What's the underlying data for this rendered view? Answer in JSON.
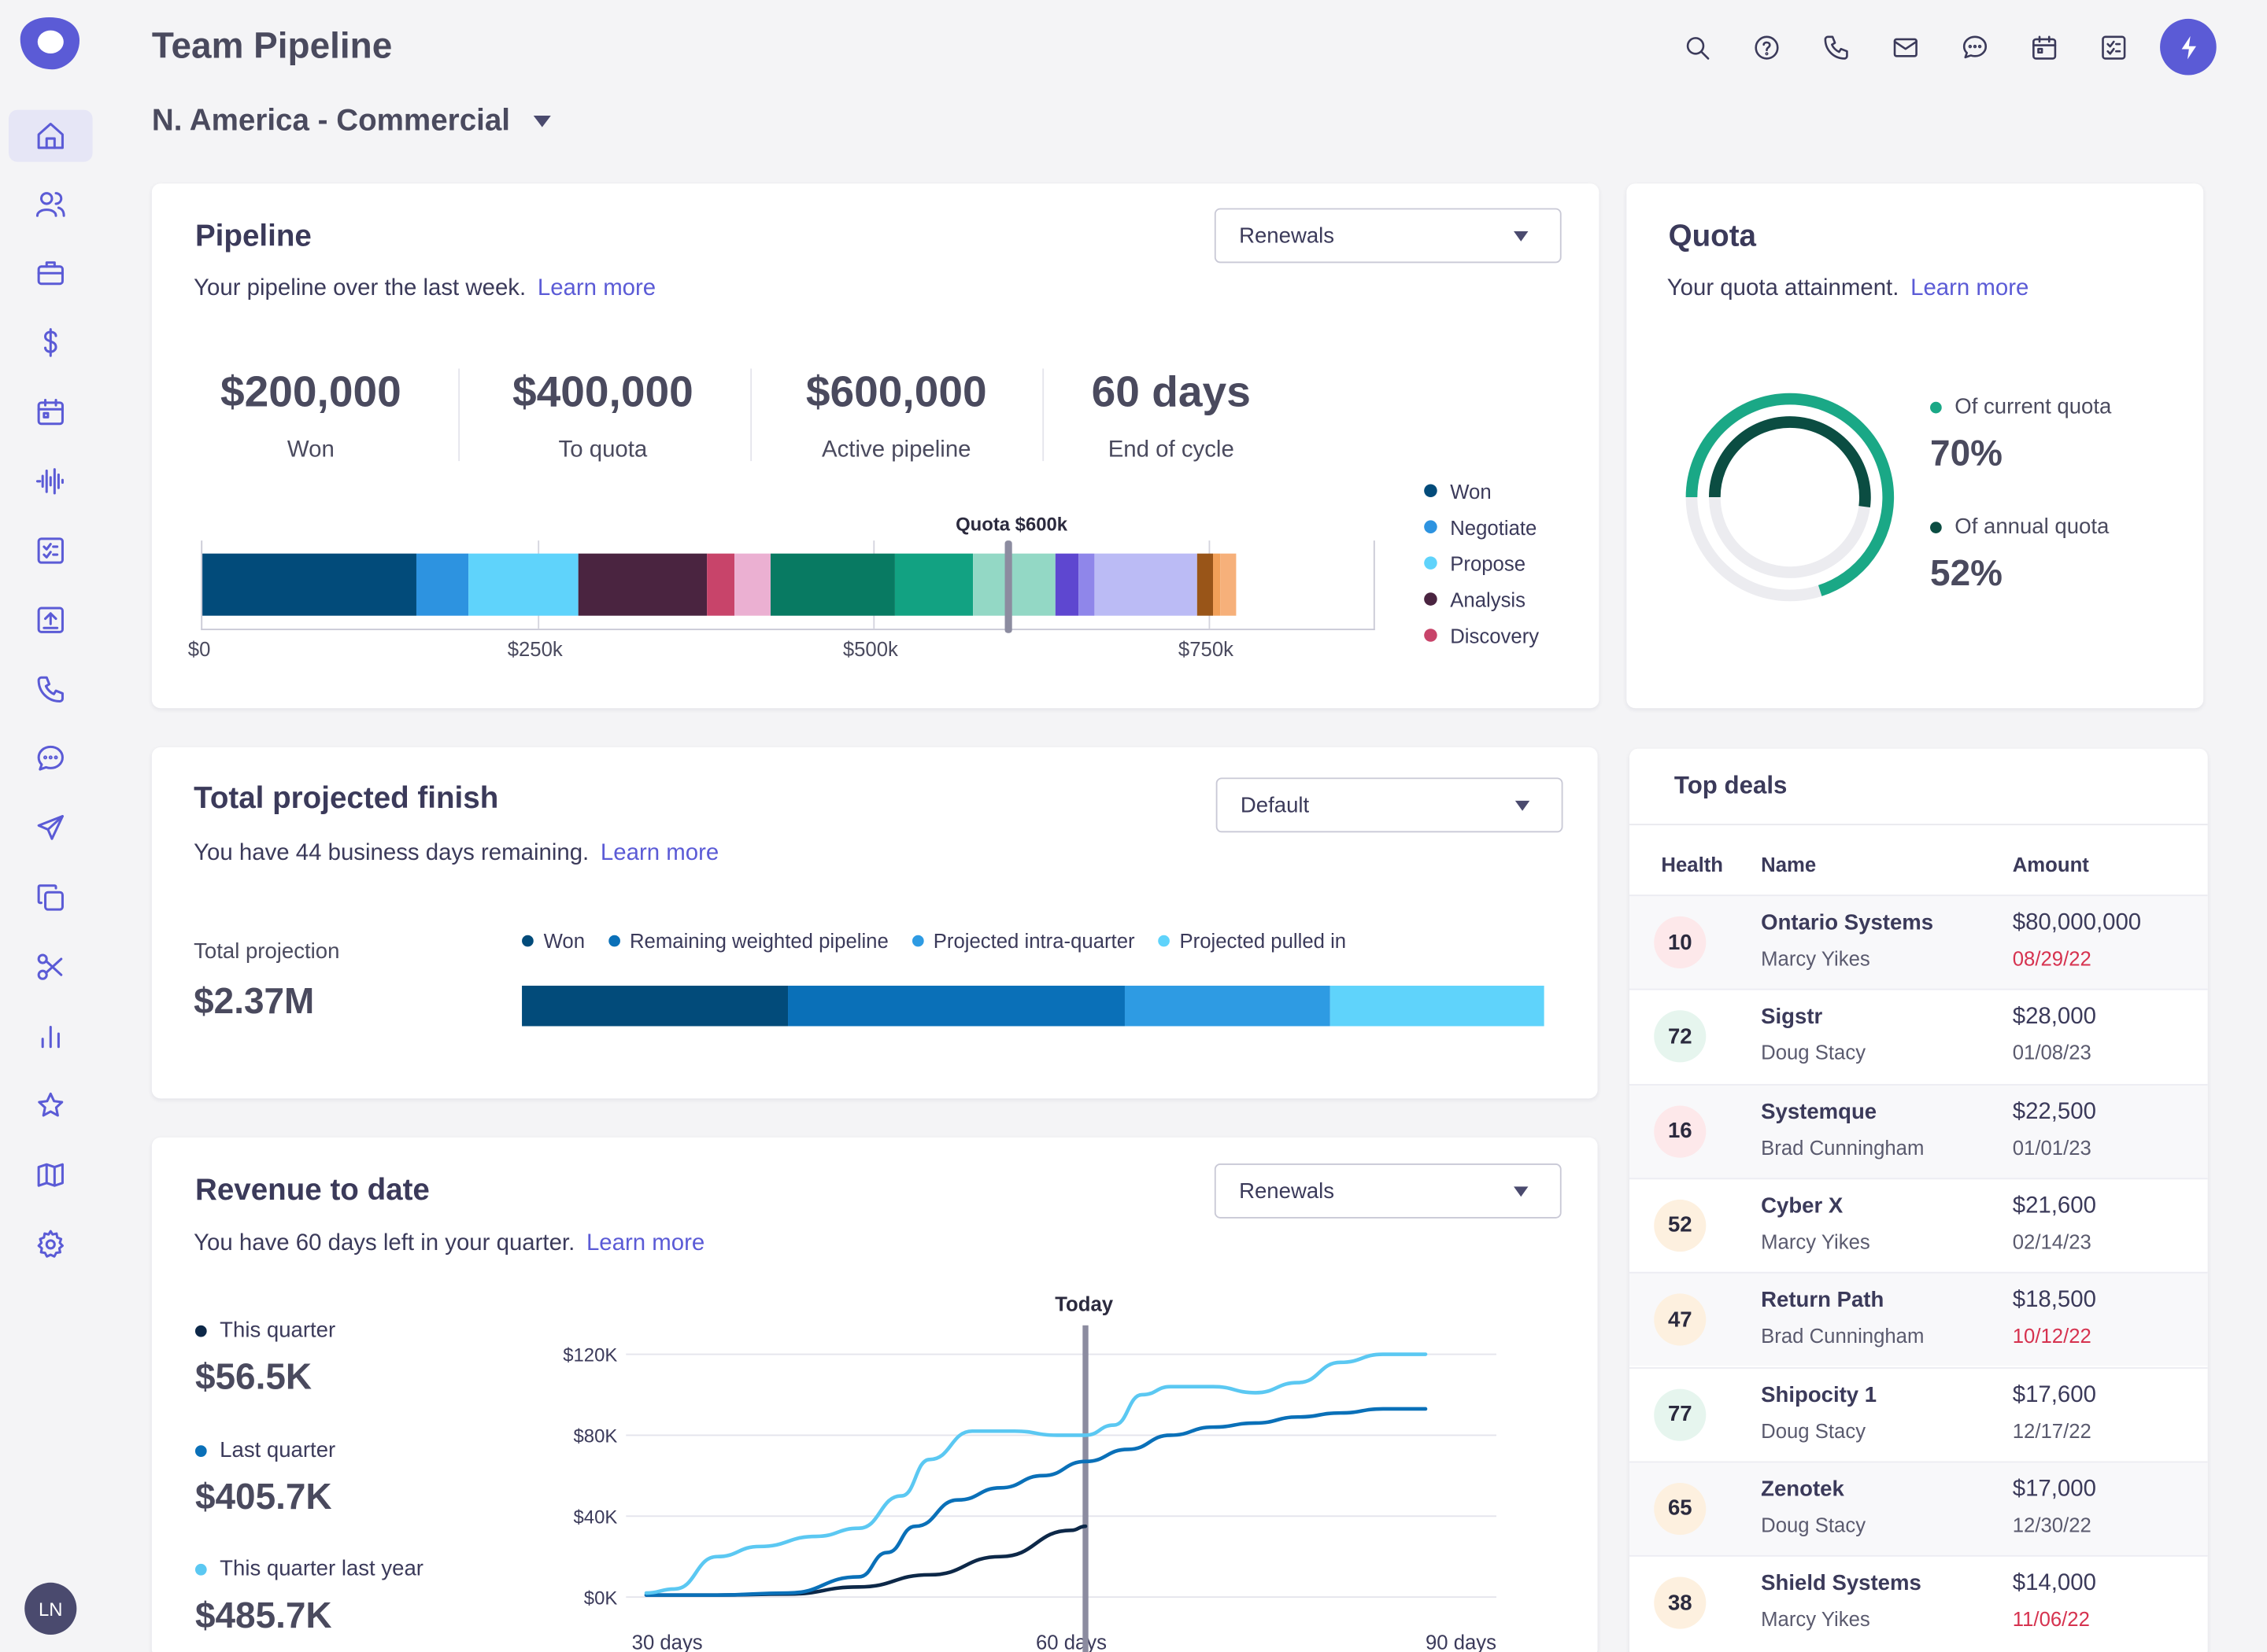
{
  "header": {
    "title": "Team Pipeline",
    "region": "N. America - Commercial",
    "icons": [
      "search-icon",
      "help-icon",
      "phone-icon",
      "mail-icon",
      "chat-icon",
      "calendar-icon",
      "tasks-icon",
      "bolt-icon"
    ]
  },
  "sidebar": {
    "items": [
      "home-icon",
      "users-icon",
      "briefcase-icon",
      "dollar-icon",
      "calendar-icon",
      "waveform-icon",
      "checklist-icon",
      "upload-icon",
      "phone-icon",
      "chat-icon",
      "send-icon",
      "copy-icon",
      "scissors-icon",
      "bar-chart-icon",
      "star-icon",
      "map-icon",
      "gear-icon"
    ],
    "avatar": "LN"
  },
  "colors": {
    "accent": "#5b5bd6",
    "won": "#024b7a",
    "negotiate": "#2d93e0",
    "propose": "#5fd3fb",
    "analysis": "#4a2440",
    "discovery": "#c8446a"
  },
  "pipeline": {
    "title": "Pipeline",
    "subtitle": "Your pipeline over the last week.",
    "learn_more": "Learn more",
    "select": "Renewals",
    "stats": [
      {
        "value": "$200,000",
        "label": "Won"
      },
      {
        "value": "$400,000",
        "label": "To quota"
      },
      {
        "value": "$600,000",
        "label": "Active pipeline"
      },
      {
        "value": "60 days",
        "label": "End of cycle"
      }
    ],
    "quota_marker": "Quota $600k",
    "legend": [
      {
        "label": "Won",
        "color": "#024b7a"
      },
      {
        "label": "Negotiate",
        "color": "#2d93e0"
      },
      {
        "label": "Propose",
        "color": "#5fd3fb"
      },
      {
        "label": "Analysis",
        "color": "#4a2440"
      },
      {
        "label": "Discovery",
        "color": "#c8446a"
      }
    ]
  },
  "chart_data": [
    {
      "type": "bar",
      "title": "",
      "orientation": "horizontal-stacked",
      "axis_ticks": [
        "$0",
        "$250k",
        "$500k",
        "$750k"
      ],
      "xlim": [
        0,
        875000
      ],
      "quota_line": 600000,
      "segments": [
        {
          "start": 0,
          "end": 160000,
          "color": "#024b7a"
        },
        {
          "start": 160000,
          "end": 198000,
          "color": "#2d93e0"
        },
        {
          "start": 198000,
          "end": 280000,
          "color": "#5fd3fb"
        },
        {
          "start": 280000,
          "end": 376000,
          "color": "#4a2440"
        },
        {
          "start": 376000,
          "end": 397000,
          "color": "#c8446a"
        },
        {
          "start": 397000,
          "end": 423000,
          "color": "#ebb0d2"
        },
        {
          "start": 423000,
          "end": 516000,
          "color": "#087a62"
        },
        {
          "start": 516000,
          "end": 574000,
          "color": "#12a282"
        },
        {
          "start": 574000,
          "end": 636000,
          "color": "#93d8c5"
        },
        {
          "start": 636000,
          "end": 653000,
          "color": "#5e47d0"
        },
        {
          "start": 653000,
          "end": 665000,
          "color": "#8f86ea"
        },
        {
          "start": 665000,
          "end": 741000,
          "color": "#bbbbf5"
        },
        {
          "start": 741000,
          "end": 753000,
          "color": "#995518"
        },
        {
          "start": 753000,
          "end": 759000,
          "color": "#f2a058"
        },
        {
          "start": 759000,
          "end": 771000,
          "color": "#f6b07a"
        }
      ]
    },
    {
      "type": "bar",
      "title": "",
      "orientation": "horizontal-stacked",
      "series": [
        {
          "name": "Won",
          "value": 26,
          "color": "#024b7a"
        },
        {
          "name": "Remaining weighted pipeline",
          "value": 33,
          "color": "#0a70b8"
        },
        {
          "name": "Projected intra-quarter",
          "value": 20,
          "color": "#2e9be3"
        },
        {
          "name": "Projected pulled in",
          "value": 21,
          "color": "#5fd3fb"
        }
      ]
    },
    {
      "type": "line",
      "title": "",
      "xlabel": "",
      "ylabel": "",
      "x_ticks": [
        "30 days",
        "60 days",
        "90 days"
      ],
      "y_ticks": [
        "$120K",
        "$80K",
        "$40K",
        "$0K"
      ],
      "ylim": [
        0,
        120000
      ],
      "xlim": [
        30,
        90
      ],
      "today_label": "Today",
      "today_x": 61,
      "series": [
        {
          "name": "This quarter",
          "color": "#0d2848",
          "x": [
            30,
            35,
            40,
            45,
            50,
            55,
            60,
            61
          ],
          "y": [
            1000,
            1000,
            1500,
            5000,
            11000,
            20000,
            33000,
            35000
          ]
        },
        {
          "name": "Last quarter",
          "color": "#0a70b8",
          "x": [
            30,
            35,
            40,
            45,
            47,
            49,
            52,
            55,
            58,
            61,
            64,
            67,
            70,
            73,
            76,
            79,
            82,
            85
          ],
          "y": [
            1000,
            1000,
            2000,
            10000,
            22000,
            35000,
            48000,
            54000,
            60000,
            67000,
            73000,
            80000,
            84000,
            86000,
            89000,
            91000,
            93000,
            93000
          ]
        },
        {
          "name": "This quarter last year",
          "color": "#5bc8f2",
          "x": [
            30,
            32,
            35,
            38,
            42,
            45,
            48,
            50,
            53,
            56,
            59,
            61,
            63,
            65,
            67,
            70,
            73,
            76,
            79,
            82,
            85
          ],
          "y": [
            2000,
            4000,
            20000,
            25000,
            30000,
            34000,
            50000,
            68000,
            82000,
            82000,
            80000,
            80000,
            85000,
            100000,
            104000,
            104000,
            101000,
            106000,
            116000,
            120000,
            120000
          ]
        }
      ]
    },
    {
      "type": "pie",
      "title": "",
      "series": [
        {
          "name": "Of current quota",
          "value": 70,
          "color": "#1aa886"
        },
        {
          "name": "Of annual quota",
          "value": 52,
          "color": "#0b4d42"
        }
      ]
    }
  ],
  "projection": {
    "title": "Total projected finish",
    "subtitle": "You have 44 business days remaining.",
    "learn_more": "Learn more",
    "select": "Default",
    "total_label": "Total projection",
    "total_value": "$2.37M"
  },
  "revenue": {
    "title": "Revenue to date",
    "subtitle": "You have 60 days left in your quarter.",
    "learn_more": "Learn more",
    "select": "Renewals",
    "metrics": [
      {
        "label": "This quarter",
        "value": "$56.5K",
        "color": "#0d2848"
      },
      {
        "label": "Last quarter",
        "value": "$405.7K",
        "color": "#0a70b8"
      },
      {
        "label": "This quarter last year",
        "value": "$485.7K",
        "color": "#5bc8f2"
      }
    ]
  },
  "quota": {
    "title": "Quota",
    "subtitle": "Your quota attainment.",
    "learn_more": "Learn more",
    "current_label": "Of current quota",
    "current_value": "70%",
    "annual_label": "Of annual quota",
    "annual_value": "52%"
  },
  "deals": {
    "title": "Top deals",
    "col_health": "Health",
    "col_name": "Name",
    "col_amount": "Amount",
    "rows": [
      {
        "health": "10",
        "name": "Ontario Systems",
        "owner": "Marcy Yikes",
        "amount": "$80,000,000",
        "date": "08/29/22",
        "overdue": true,
        "tint": "#fde8ea"
      },
      {
        "health": "72",
        "name": "Sigstr",
        "owner": "Doug Stacy",
        "amount": "$28,000",
        "date": "01/08/23",
        "overdue": false,
        "tint": "#e6f5ee"
      },
      {
        "health": "16",
        "name": "Systemque",
        "owner": "Brad Cunningham",
        "amount": "$22,500",
        "date": "01/01/23",
        "overdue": false,
        "tint": "#fde8ea"
      },
      {
        "health": "52",
        "name": "Cyber X",
        "owner": "Marcy Yikes",
        "amount": "$21,600",
        "date": "02/14/23",
        "overdue": false,
        "tint": "#fdf0df"
      },
      {
        "health": "47",
        "name": "Return Path",
        "owner": "Brad Cunningham",
        "amount": "$18,500",
        "date": "10/12/22",
        "overdue": true,
        "tint": "#fdf0df"
      },
      {
        "health": "77",
        "name": "Shipocity 1",
        "owner": "Doug Stacy",
        "amount": "$17,600",
        "date": "12/17/22",
        "overdue": false,
        "tint": "#e6f5ee"
      },
      {
        "health": "65",
        "name": "Zenotek",
        "owner": "Doug Stacy",
        "amount": "$17,000",
        "date": "12/30/22",
        "overdue": false,
        "tint": "#fdf0df"
      },
      {
        "health": "38",
        "name": "Shield Systems",
        "owner": "Marcy Yikes",
        "amount": "$14,000",
        "date": "11/06/22",
        "overdue": true,
        "tint": "#fdf0df"
      }
    ]
  }
}
